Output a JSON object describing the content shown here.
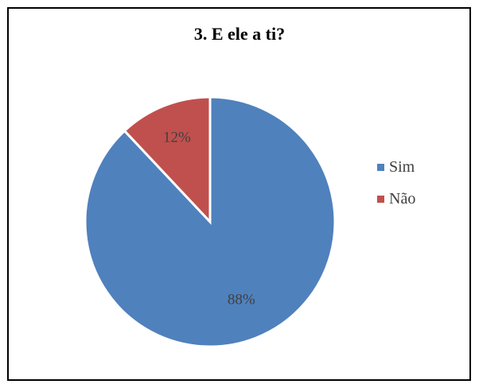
{
  "chart_data": {
    "type": "pie",
    "title": "3. E ele a ti?",
    "categories": [
      "Sim",
      "Não"
    ],
    "values": [
      88,
      12
    ],
    "value_labels": [
      "88%",
      "12%"
    ],
    "colors": [
      "#4f81bd",
      "#c0504d"
    ],
    "legend_position": "right"
  }
}
